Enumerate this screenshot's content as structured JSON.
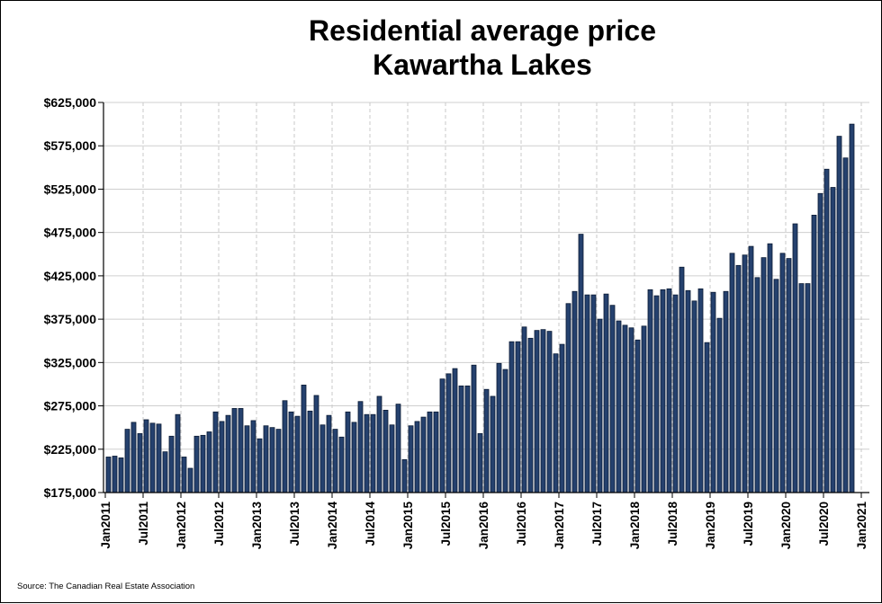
{
  "chart_data": {
    "type": "bar",
    "title": "Residential average price",
    "subtitle": "Kawartha Lakes",
    "xlabel": "",
    "ylabel": "",
    "ylim": [
      175000,
      625000
    ],
    "ytick_values": [
      175000,
      225000,
      275000,
      325000,
      375000,
      425000,
      475000,
      525000,
      575000,
      625000
    ],
    "ytick_labels": [
      "$175,000",
      "$225,000",
      "$275,000",
      "$325,000",
      "$375,000",
      "$425,000",
      "$475,000",
      "$525,000",
      "$575,000",
      "$625,000"
    ],
    "grid": true,
    "bar_color": "#25416e",
    "bar_edge_color": "#0a1a33",
    "start_month": "2011-01",
    "xtick_labels": [
      "Jan2011",
      "Jul2011",
      "Jan2012",
      "Jul2012",
      "Jan2013",
      "Jul2013",
      "Jan2014",
      "Jul2014",
      "Jan2015",
      "Jul2015",
      "Jan2016",
      "Jul2016",
      "Jan2017",
      "Jul2017",
      "Jan2018",
      "Jul2018",
      "Jan2019",
      "Jul2019",
      "Jan2020",
      "Jul2020",
      "Jan2021"
    ],
    "values": [
      216000,
      217000,
      215000,
      248000,
      256000,
      243000,
      259000,
      255000,
      254000,
      222000,
      240000,
      265000,
      216000,
      203000,
      240000,
      241000,
      245000,
      268000,
      257000,
      264000,
      272000,
      272000,
      252000,
      258000,
      237000,
      252000,
      250000,
      248000,
      281000,
      268000,
      263000,
      299000,
      269000,
      287000,
      253000,
      264000,
      248000,
      239000,
      268000,
      256000,
      280000,
      265000,
      265000,
      286000,
      270000,
      253000,
      277000,
      213000,
      252000,
      257000,
      262000,
      268000,
      268000,
      306000,
      312000,
      318000,
      298000,
      298000,
      322000,
      243000,
      294000,
      286000,
      324000,
      317000,
      349000,
      349000,
      366000,
      353000,
      362000,
      363000,
      361000,
      335000,
      346000,
      393000,
      407000,
      473000,
      403000,
      403000,
      375000,
      404000,
      391000,
      373000,
      368000,
      365000,
      351000,
      367000,
      409000,
      402000,
      409000,
      410000,
      403000,
      435000,
      408000,
      396000,
      410000,
      348000,
      406000,
      376000,
      407000,
      451000,
      437000,
      449000,
      459000,
      423000,
      446000,
      462000,
      421000,
      451000,
      445000,
      485000,
      416000,
      416000,
      495000,
      520000,
      548000,
      527000,
      586000,
      561000,
      600000
    ]
  },
  "source_note": "Source: The Canadian Real Estate Association"
}
